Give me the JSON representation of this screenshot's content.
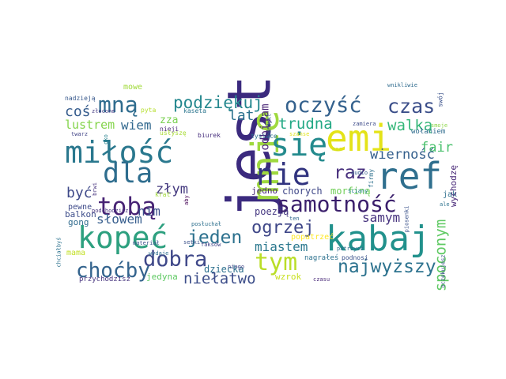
{
  "words": [
    {
      "text": "jest",
      "color": "#3b2a7e"
    },
    {
      "text": "mnie",
      "color": "#9fd93f"
    },
    {
      "text": "emi",
      "color": "#e4e319"
    },
    {
      "text": "ref",
      "color": "#2f6f8e"
    },
    {
      "text": "kabaj",
      "color": "#21918c"
    },
    {
      "text": "miłość",
      "color": "#2a788e"
    },
    {
      "text": "kopeć",
      "color": "#2da07f"
    },
    {
      "text": "samotność",
      "color": "#3b1f6c"
    },
    {
      "text": "się",
      "color": "#238a8d"
    },
    {
      "text": "nie",
      "color": "#31337f"
    },
    {
      "text": "dla",
      "color": "#2e6d8e"
    },
    {
      "text": "tobą",
      "color": "#472374"
    },
    {
      "text": "oczyść",
      "color": "#34618d"
    },
    {
      "text": "czas",
      "color": "#3c4f8a"
    },
    {
      "text": "mną",
      "color": "#2f6c8e"
    },
    {
      "text": "podziękuj",
      "color": "#24878e"
    },
    {
      "text": "dobra",
      "color": "#3f4889"
    },
    {
      "text": "tym",
      "color": "#bade28"
    },
    {
      "text": "najwyższy",
      "color": "#2c728e"
    },
    {
      "text": "choćby",
      "color": "#33638d"
    },
    {
      "text": "jeden",
      "color": "#2c718e"
    },
    {
      "text": "ogrzej",
      "color": "#3f4788"
    },
    {
      "text": "raz",
      "color": "#472e7c"
    },
    {
      "text": "spoconym",
      "color": "#5ec962"
    },
    {
      "text": "trudna",
      "color": "#22a884"
    },
    {
      "text": "niełatwo",
      "color": "#3d4e8a"
    },
    {
      "text": "lustrem",
      "color": "#84d44b"
    },
    {
      "text": "wiem",
      "color": "#31688e"
    },
    {
      "text": "walką",
      "color": "#35b779"
    },
    {
      "text": "fair",
      "color": "#4ac16d"
    },
    {
      "text": "wierność",
      "color": "#35608d"
    },
    {
      "text": "coś",
      "color": "#365c8d"
    },
    {
      "text": "lat",
      "color": "#2c728e"
    },
    {
      "text": "odbijam",
      "color": "#482475"
    },
    {
      "text": "złym",
      "color": "#44397f"
    },
    {
      "text": "być",
      "color": "#3e4989"
    },
    {
      "text": "słowem",
      "color": "#365d8d"
    },
    {
      "text": "nim",
      "color": "#3c4f8a"
    },
    {
      "text": "miastem",
      "color": "#2a788e"
    },
    {
      "text": "samym",
      "color": "#46327e"
    },
    {
      "text": "mowe",
      "color": "#a0da39"
    },
    {
      "text": "zza",
      "color": "#7ad151"
    },
    {
      "text": "balkon",
      "color": "#3d4d8a"
    },
    {
      "text": "gong",
      "color": "#2f6b8e"
    },
    {
      "text": "mama",
      "color": "#c2df23"
    },
    {
      "text": "dziecka",
      "color": "#2d708e"
    },
    {
      "text": "poezją",
      "color": "#453781"
    },
    {
      "text": "chorych",
      "color": "#3f4788"
    },
    {
      "text": "morfiną",
      "color": "#70cf57"
    },
    {
      "text": "jedno",
      "color": "#482677"
    },
    {
      "text": "wzrok",
      "color": "#c8e020"
    },
    {
      "text": "jedyna",
      "color": "#5ec962"
    },
    {
      "text": "przychodzisz",
      "color": "#46337e"
    },
    {
      "text": "pewne",
      "color": "#3e4a89"
    },
    {
      "text": "jak",
      "color": "#2e6f8e"
    },
    {
      "text": "wychodzę",
      "color": "#482878"
    },
    {
      "text": "popatrzeć",
      "color": "#fde725"
    },
    {
      "text": "nagrałeś",
      "color": "#2c718e"
    },
    {
      "text": "podnosi",
      "color": "#3b528b"
    },
    {
      "text": "nadzieją",
      "color": "#38598c"
    },
    {
      "text": "pyta",
      "color": "#b5de2b"
    },
    {
      "text": "złocone",
      "color": "#443a83"
    },
    {
      "text": "kaseta",
      "color": "#2b758e"
    },
    {
      "text": "twarz",
      "color": "#414487"
    },
    {
      "text": "nieji",
      "color": "#482677"
    },
    {
      "text": "usłyszę",
      "color": "#a8db34"
    },
    {
      "text": "oko",
      "color": "#26828e"
    },
    {
      "text": "biurek",
      "color": "#472f7d"
    },
    {
      "text": "tysiące",
      "color": "#2c728e"
    },
    {
      "text": "szanse",
      "color": "#e1e51c"
    },
    {
      "text": "zamiera",
      "color": "#3e4c8a"
    },
    {
      "text": "wołaniem",
      "color": "#2f6c8e"
    },
    {
      "text": "wnikliwie",
      "color": "#2f6b8e"
    },
    {
      "text": "swój",
      "color": "#3b528b"
    },
    {
      "text": "smoje",
      "color": "#8bd646"
    },
    {
      "text": "werdykt",
      "color": "#38598c"
    },
    {
      "text": "noc",
      "color": "#c8e020"
    },
    {
      "text": "ściany",
      "color": "#26828e"
    },
    {
      "text": "audio",
      "color": "#365d8d"
    },
    {
      "text": "firmy",
      "color": "#2d708e"
    },
    {
      "text": "krat",
      "color": "#9fda3a"
    },
    {
      "text": "aby",
      "color": "#440154"
    },
    {
      "text": "podchodzisz",
      "color": "#46327e"
    },
    {
      "text": "posłuchał",
      "color": "#2d708e"
    },
    {
      "text": "setki",
      "color": "#3b528b"
    },
    {
      "text": "ten",
      "color": "#31688e"
    },
    {
      "text": "brwi",
      "color": "#46337e"
    },
    {
      "text": "materiał",
      "color": "#3b528b"
    },
    {
      "text": "faksów",
      "color": "#414487"
    },
    {
      "text": "wydaje",
      "color": "#2e6e8e"
    },
    {
      "text": "chciałbyś",
      "color": "#2c728e"
    },
    {
      "text": "niego",
      "color": "#414487"
    },
    {
      "text": "czasu",
      "color": "#482878"
    },
    {
      "text": "piosenki",
      "color": "#3b528b"
    },
    {
      "text": "ale",
      "color": "#2c728e"
    },
    {
      "text": "patrzysz",
      "color": "#2f6c8e"
    },
    {
      "text": "oczekujesz",
      "color": "#3b528b"
    }
  ]
}
